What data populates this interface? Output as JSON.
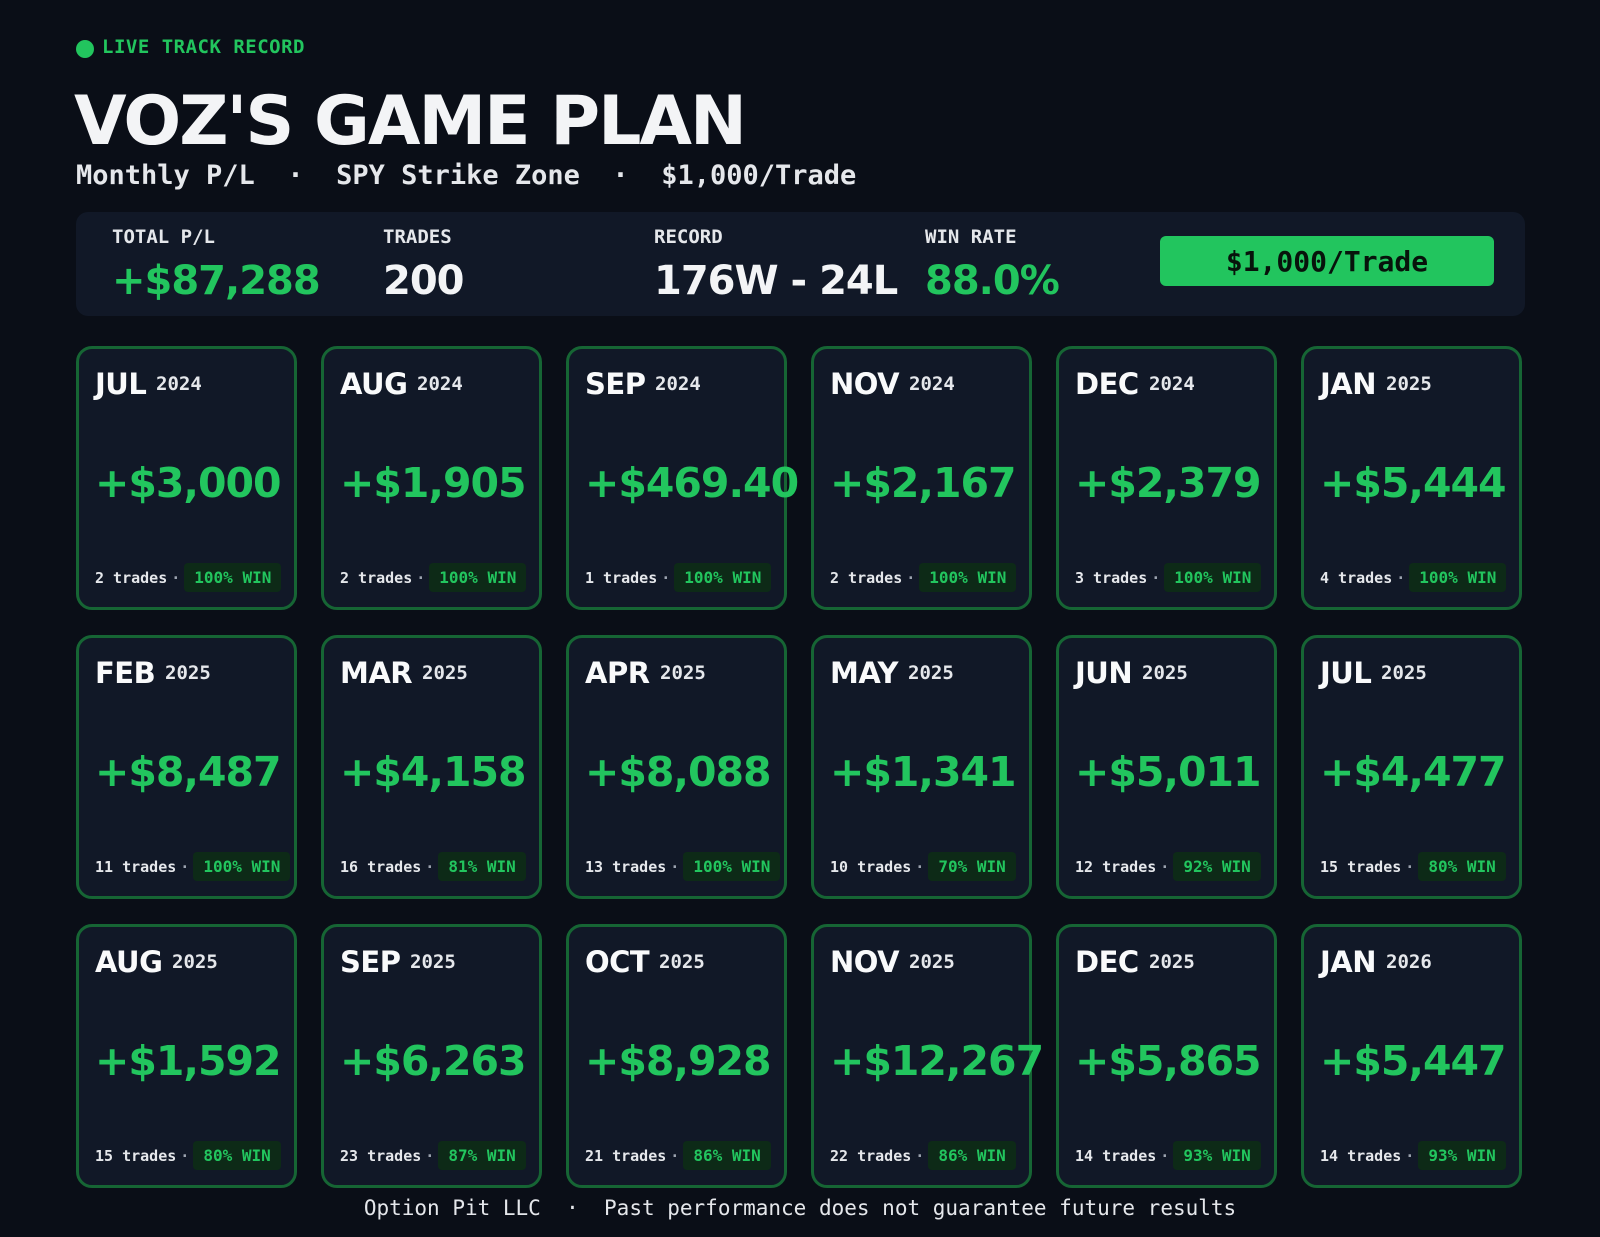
{
  "header": {
    "live_label": "LIVE TRACK RECORD",
    "title": "VOZ'S GAME PLAN",
    "subtitle": "Monthly P/L  ·  SPY Strike Zone  ·  $1,000/Trade"
  },
  "stats": {
    "total_pl_label": "TOTAL P/L",
    "total_pl_value": "+$87,288",
    "trades_label": "TRADES",
    "trades_value": "200",
    "record_label": "RECORD",
    "record_value": "176W - 24L",
    "win_rate_label": "WIN RATE",
    "win_rate_value": "88.0%",
    "trade_button": "$1,000/Trade"
  },
  "months": [
    {
      "month": "JUL",
      "year": "2024",
      "pl": "+$3,000",
      "trades": "2 trades",
      "win": "100% WIN"
    },
    {
      "month": "AUG",
      "year": "2024",
      "pl": "+$1,905",
      "trades": "2 trades",
      "win": "100% WIN"
    },
    {
      "month": "SEP",
      "year": "2024",
      "pl": "+$469.40",
      "trades": "1 trades",
      "win": "100% WIN"
    },
    {
      "month": "NOV",
      "year": "2024",
      "pl": "+$2,167",
      "trades": "2 trades",
      "win": "100% WIN"
    },
    {
      "month": "DEC",
      "year": "2024",
      "pl": "+$2,379",
      "trades": "3 trades",
      "win": "100% WIN"
    },
    {
      "month": "JAN",
      "year": "2025",
      "pl": "+$5,444",
      "trades": "4 trades",
      "win": "100% WIN"
    },
    {
      "month": "FEB",
      "year": "2025",
      "pl": "+$8,487",
      "trades": "11 trades",
      "win": "100% WIN"
    },
    {
      "month": "MAR",
      "year": "2025",
      "pl": "+$4,158",
      "trades": "16 trades",
      "win": "81% WIN"
    },
    {
      "month": "APR",
      "year": "2025",
      "pl": "+$8,088",
      "trades": "13 trades",
      "win": "100% WIN"
    },
    {
      "month": "MAY",
      "year": "2025",
      "pl": "+$1,341",
      "trades": "10 trades",
      "win": "70% WIN"
    },
    {
      "month": "JUN",
      "year": "2025",
      "pl": "+$5,011",
      "trades": "12 trades",
      "win": "92% WIN"
    },
    {
      "month": "JUL",
      "year": "2025",
      "pl": "+$4,477",
      "trades": "15 trades",
      "win": "80% WIN"
    },
    {
      "month": "AUG",
      "year": "2025",
      "pl": "+$1,592",
      "trades": "15 trades",
      "win": "80% WIN"
    },
    {
      "month": "SEP",
      "year": "2025",
      "pl": "+$6,263",
      "trades": "23 trades",
      "win": "87% WIN"
    },
    {
      "month": "OCT",
      "year": "2025",
      "pl": "+$8,928",
      "trades": "21 trades",
      "win": "86% WIN"
    },
    {
      "month": "NOV",
      "year": "2025",
      "pl": "+$12,267",
      "trades": "22 trades",
      "win": "86% WIN"
    },
    {
      "month": "DEC",
      "year": "2025",
      "pl": "+$5,865",
      "trades": "14 trades",
      "win": "93% WIN"
    },
    {
      "month": "JAN",
      "year": "2026",
      "pl": "+$5,447",
      "trades": "14 trades",
      "win": "93% WIN"
    }
  ],
  "separator": "·",
  "footer": "Option Pit LLC  ·  Past performance does not guarantee future results",
  "colors": {
    "background": "#0a0e17",
    "accent": "#22c55e",
    "card_border": "#166534",
    "panel": "#111827"
  }
}
